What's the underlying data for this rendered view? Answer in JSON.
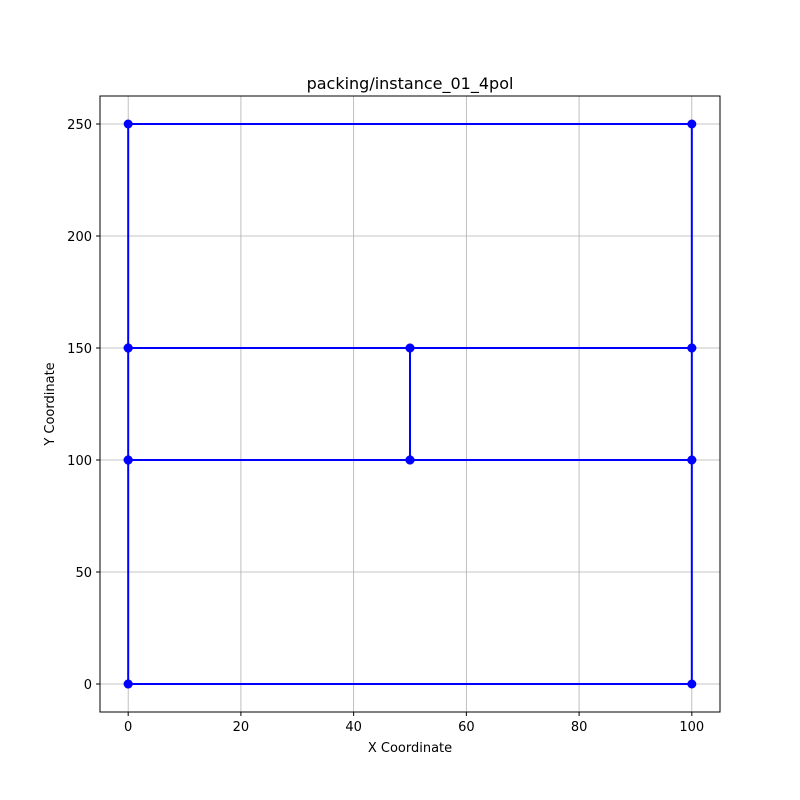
{
  "chart_data": {
    "type": "line",
    "title": "packing/instance_01_4pol",
    "xlabel": "X Coordinate",
    "ylabel": "Y Coordinate",
    "xlim": [
      -5,
      105
    ],
    "ylim": [
      -12.5,
      262.5
    ],
    "xticks": [
      0,
      20,
      40,
      60,
      80,
      100
    ],
    "yticks": [
      0,
      50,
      100,
      150,
      200,
      250
    ],
    "grid": true,
    "color": "#0000ff",
    "polygons": [
      {
        "x": [
          0,
          100,
          100,
          0,
          0
        ],
        "y": [
          0,
          0,
          100,
          100,
          0
        ]
      },
      {
        "x": [
          0,
          50,
          50,
          0,
          0
        ],
        "y": [
          100,
          100,
          150,
          150,
          100
        ]
      },
      {
        "x": [
          50,
          100,
          100,
          50,
          50
        ],
        "y": [
          100,
          100,
          150,
          150,
          100
        ]
      },
      {
        "x": [
          0,
          100,
          100,
          0,
          0
        ],
        "y": [
          150,
          150,
          250,
          250,
          150
        ]
      }
    ]
  }
}
